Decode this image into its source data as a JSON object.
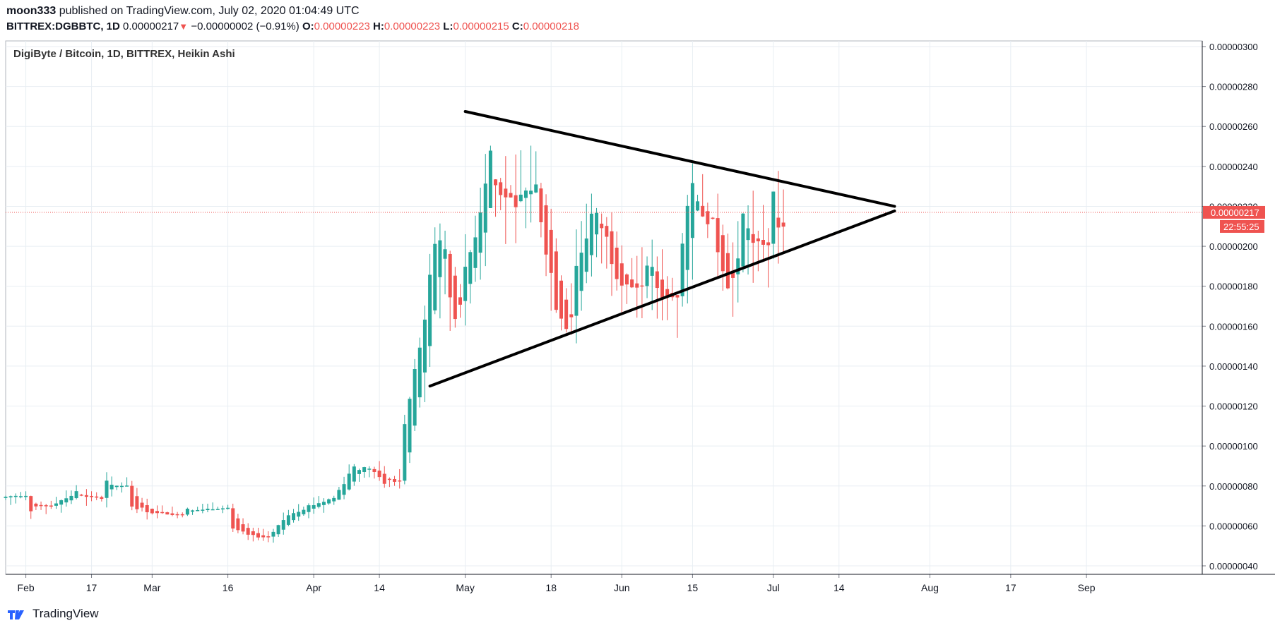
{
  "header": {
    "author": "moon333",
    "published_text": "published on TradingView.com, July 02, 2020 01:04:49 UTC",
    "symbol": "BITTREX:DGBBTC, 1D",
    "last": "0.00000217",
    "change_arrow": "▼",
    "change": "−0.00000002 (−0.91%)",
    "o_label": "O:",
    "o_value": "0.00000223",
    "h_label": "H:",
    "h_value": "0.00000223",
    "l_label": "L:",
    "l_value": "0.00000215",
    "c_label": "C:",
    "c_value": "0.00000218"
  },
  "legend": {
    "title": "DigiByte / Bitcoin, 1D, BITTREX, Heikin Ashi"
  },
  "branding": {
    "logo_text": "TradingView"
  },
  "colors": {
    "up": "#26a69a",
    "down": "#ef5350",
    "trendline": "#000000",
    "grid": "#e8eef3",
    "price_line": "#ef5350"
  },
  "chart_data": {
    "type": "candlestick",
    "style": "Heikin Ashi",
    "title": "DigiByte / Bitcoin, 1D, BITTREX, Heikin Ashi",
    "ylim": [
      4e-07,
      3e-06
    ],
    "y_ticks": [
      "0.00000300",
      "0.00000280",
      "0.00000260",
      "0.00000240",
      "0.00000220",
      "0.00000200",
      "0.00000180",
      "0.00000160",
      "0.00000140",
      "0.00000120",
      "0.00000100",
      "0.00000080",
      "0.00000060",
      "0.00000040"
    ],
    "x_ticks": [
      {
        "label": "Feb",
        "day": 4
      },
      {
        "label": "17",
        "day": 17
      },
      {
        "label": "Mar",
        "day": 29
      },
      {
        "label": "16",
        "day": 44
      },
      {
        "label": "Apr",
        "day": 61
      },
      {
        "label": "14",
        "day": 74
      },
      {
        "label": "May",
        "day": 91
      },
      {
        "label": "18",
        "day": 108
      },
      {
        "label": "Jun",
        "day": 122
      },
      {
        "label": "15",
        "day": 136
      },
      {
        "label": "Jul",
        "day": 152
      },
      {
        "label": "14",
        "day": 165
      },
      {
        "label": "Aug",
        "day": 183
      },
      {
        "label": "17",
        "day": 199
      },
      {
        "label": "Sep",
        "day": 214
      }
    ],
    "day0": "2020-01-28",
    "last_price": {
      "value": 2.17e-06,
      "label": "0.00000217",
      "countdown": "22:55:25"
    },
    "anchors": [
      [
        0,
        74,
        0
      ],
      [
        5,
        68,
        1
      ],
      [
        10,
        72,
        0
      ],
      [
        15,
        78,
        1
      ],
      [
        20,
        82,
        0
      ],
      [
        25,
        70,
        1
      ],
      [
        30,
        66,
        1
      ],
      [
        36,
        68,
        0
      ],
      [
        40,
        66,
        0
      ],
      [
        45,
        58,
        1
      ],
      [
        50,
        54,
        1
      ],
      [
        53,
        57,
        0
      ],
      [
        56,
        66,
        0
      ],
      [
        60,
        70,
        0
      ],
      [
        65,
        74,
        0
      ],
      [
        69,
        90,
        0
      ],
      [
        73,
        87,
        1
      ],
      [
        75,
        80,
        1
      ],
      [
        79,
        110,
        0
      ],
      [
        82,
        150,
        0
      ],
      [
        85,
        200,
        0
      ],
      [
        86,
        207,
        0
      ],
      [
        88,
        175,
        1
      ],
      [
        89,
        165,
        1
      ],
      [
        91,
        185,
        0
      ],
      [
        94,
        220,
        0
      ],
      [
        95,
        235,
        0
      ],
      [
        96,
        248,
        0
      ],
      [
        97,
        236,
        1
      ],
      [
        100,
        220,
        1
      ],
      [
        102,
        225,
        0
      ],
      [
        106,
        215,
        1
      ],
      [
        109,
        172,
        1
      ],
      [
        111,
        162,
        1
      ],
      [
        113,
        190,
        0
      ],
      [
        116,
        215,
        0
      ],
      [
        118,
        210,
        1
      ],
      [
        121,
        188,
        1
      ],
      [
        124,
        180,
        1
      ],
      [
        127,
        186,
        0
      ],
      [
        129,
        180,
        1
      ],
      [
        131,
        174,
        1
      ],
      [
        134,
        200,
        0
      ],
      [
        136,
        230,
        0
      ],
      [
        138,
        225,
        1
      ],
      [
        141,
        200,
        1
      ],
      [
        143,
        183,
        1
      ],
      [
        145,
        196,
        0
      ],
      [
        146,
        214,
        0
      ],
      [
        148,
        208,
        1
      ],
      [
        150,
        203,
        1
      ],
      [
        152,
        222,
        0
      ],
      [
        153,
        220,
        1
      ],
      [
        154,
        218,
        1
      ]
    ],
    "trendlines": [
      {
        "name": "upper",
        "from": {
          "day": 91,
          "price": 2.675e-06
        },
        "to": {
          "day": 176,
          "price": 2.2e-06
        }
      },
      {
        "name": "lower",
        "from": {
          "day": 84,
          "price": 1.3e-06
        },
        "to": {
          "day": 176,
          "price": 2.177e-06
        }
      }
    ]
  }
}
